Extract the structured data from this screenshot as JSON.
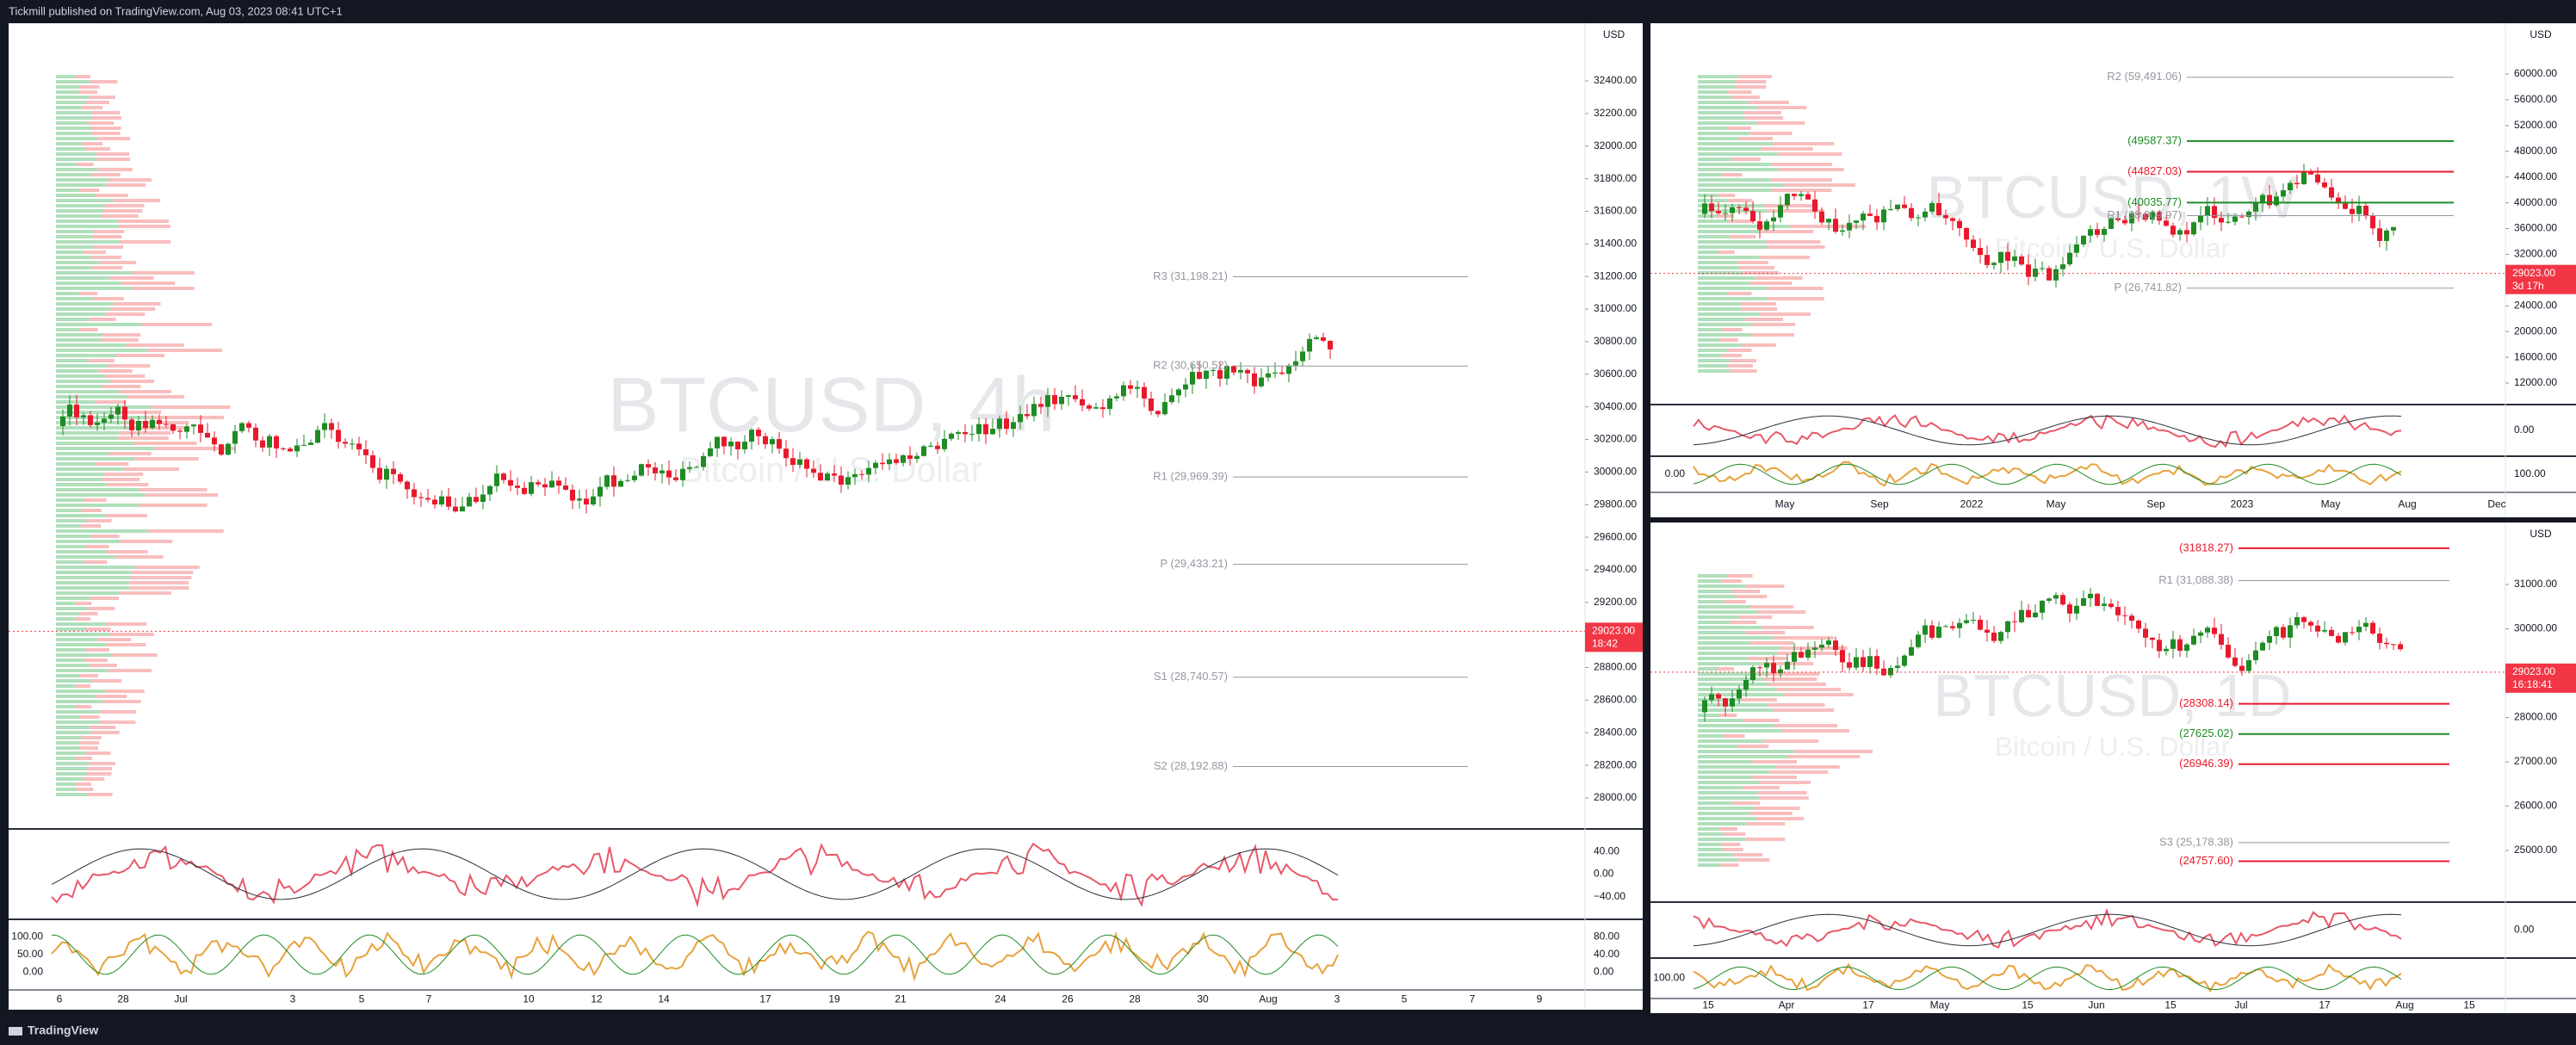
{
  "header": {
    "publisher": "Tickmill published on TradingView.com, Aug 03, 2023 08:41 UTC+1"
  },
  "footer": {
    "brand": "TradingView"
  },
  "panels": [
    {
      "currency": "USD",
      "watermark": "BTCUSD, 4h",
      "watermark_sub": "Bitcoin / U.S. Dollar",
      "price_ticks": [
        {
          "value": 32400,
          "label": "32400.00"
        },
        {
          "value": 32200,
          "label": "32200.00"
        },
        {
          "value": 32000,
          "label": "32000.00"
        },
        {
          "value": 31800,
          "label": "31800.00"
        },
        {
          "value": 31600,
          "label": "31600.00"
        },
        {
          "value": 31400,
          "label": "31400.00"
        },
        {
          "value": 31200,
          "label": "31200.00"
        },
        {
          "value": 31000,
          "label": "31000.00"
        },
        {
          "value": 30800,
          "label": "30800.00"
        },
        {
          "value": 30600,
          "label": "30600.00"
        },
        {
          "value": 30400,
          "label": "30400.00"
        },
        {
          "value": 30200,
          "label": "30200.00"
        },
        {
          "value": 30000,
          "label": "30000.00"
        },
        {
          "value": 29800,
          "label": "29800.00"
        },
        {
          "value": 29600,
          "label": "29600.00"
        },
        {
          "value": 29400,
          "label": "29400.00"
        },
        {
          "value": 29200,
          "label": "29200.00"
        },
        {
          "value": 29000,
          "label": "29000.00"
        },
        {
          "value": 28800,
          "label": "28800.00"
        },
        {
          "value": 28600,
          "label": "28600.00"
        },
        {
          "value": 28400,
          "label": "28400.00"
        },
        {
          "value": 28200,
          "label": "28200.00"
        },
        {
          "value": 28000,
          "label": "28000.00"
        }
      ],
      "price_tag": {
        "value": 29023,
        "label": "29023.00"
      },
      "countdown": "18:42",
      "levels": [
        {
          "value": 31198.21,
          "label": "R3 (31,198.21)"
        },
        {
          "value": 30650.52,
          "label": "R2 (30,650.52)"
        },
        {
          "value": 29969.39,
          "label": "R1 (29,969.39)"
        },
        {
          "value": 29433.21,
          "label": "P (29,433.21)"
        },
        {
          "value": 28740.57,
          "label": "S1 (28,740.57)"
        },
        {
          "value": 28192.88,
          "label": "S2 (28,192.88)"
        }
      ],
      "osc1_ticks": [
        "40.00",
        "0.00",
        "−40.00"
      ],
      "osc2_ticks": [
        "80.00",
        "40.00",
        "0.00"
      ],
      "osc2_left_ticks": [
        "100.00",
        "50.00",
        "0.00"
      ],
      "time_ticks": [
        "6",
        "28",
        "Jul",
        "3",
        "5",
        "7",
        "10",
        "12",
        "14",
        "17",
        "19",
        "21",
        "24",
        "26",
        "28",
        "30",
        "Aug",
        "3",
        "5",
        "7",
        "9"
      ]
    },
    {
      "currency": "USD",
      "watermark": "BTCUSD, 1W",
      "watermark_sub": "Bitcoin / U.S. Dollar",
      "price_ticks": [
        {
          "value": 60000,
          "label": "60000.00"
        },
        {
          "value": 56000,
          "label": "56000.00"
        },
        {
          "value": 52000,
          "label": "52000.00"
        },
        {
          "value": 48000,
          "label": "48000.00"
        },
        {
          "value": 44000,
          "label": "44000.00"
        },
        {
          "value": 40000,
          "label": "40000.00"
        },
        {
          "value": 36000,
          "label": "36000.00"
        },
        {
          "value": 32000,
          "label": "32000.00"
        },
        {
          "value": 28000,
          "label": "28000.00"
        },
        {
          "value": 24000,
          "label": "24000.00"
        },
        {
          "value": 20000,
          "label": "20000.00"
        },
        {
          "value": 16000,
          "label": "16000.00"
        },
        {
          "value": 12000,
          "label": "12000.00"
        }
      ],
      "price_tag": {
        "value": 29023,
        "label": "29023.00"
      },
      "countdown": "3d 17h",
      "levels": [
        {
          "value": 59491.06,
          "label": "R2 (59,491.06)"
        },
        {
          "value": 49587.37,
          "label": "(49587.37)"
        },
        {
          "value": 44827.03,
          "label": "(44827.03)"
        },
        {
          "value": 40035.77,
          "label": "(40035.77)"
        },
        {
          "value": 38009.97,
          "label": "R1 (38,009.97)"
        },
        {
          "value": 26741.82,
          "label": "P (26,741.82)"
        }
      ],
      "osc1_ticks": [
        "0.00"
      ],
      "osc2_ticks": [
        "100.00"
      ],
      "osc2_left_ticks": [
        "0.00"
      ],
      "time_ticks": [
        "May",
        "Sep",
        "2022",
        "May",
        "Sep",
        "2023",
        "May",
        "Aug",
        "Dec"
      ]
    },
    {
      "currency": "USD",
      "watermark": "BTCUSD, 1D",
      "watermark_sub": "Bitcoin / U.S. Dollar",
      "price_ticks": [
        {
          "value": 31000,
          "label": "31000.00"
        },
        {
          "value": 30000,
          "label": "30000.00"
        },
        {
          "value": 29000,
          "label": "29000.00"
        },
        {
          "value": 28000,
          "label": "28000.00"
        },
        {
          "value": 27000,
          "label": "27000.00"
        },
        {
          "value": 26000,
          "label": "26000.00"
        },
        {
          "value": 25000,
          "label": "25000.00"
        }
      ],
      "price_tag": {
        "value": 29023,
        "label": "29023.00"
      },
      "countdown": "16:18:41",
      "levels": [
        {
          "value": 31818.27,
          "label": "(31818.27)"
        },
        {
          "value": 31088.38,
          "label": "R1 (31,088.38)"
        },
        {
          "value": 28308.14,
          "label": "(28308.14)"
        },
        {
          "value": 27625.02,
          "label": "(27625.02)"
        },
        {
          "value": 26946.39,
          "label": "(26946.39)"
        },
        {
          "value": 25178.38,
          "label": "S3 (25,178.38)"
        },
        {
          "value": 24757.6,
          "label": "(24757.60)"
        }
      ],
      "osc1_ticks": [
        "0.00"
      ],
      "osc2_ticks": [],
      "osc2_left_ticks": [
        "100.00"
      ],
      "time_ticks": [
        "15",
        "Apr",
        "17",
        "May",
        "15",
        "Jun",
        "15",
        "Jul",
        "17",
        "Aug",
        "15"
      ]
    }
  ]
}
